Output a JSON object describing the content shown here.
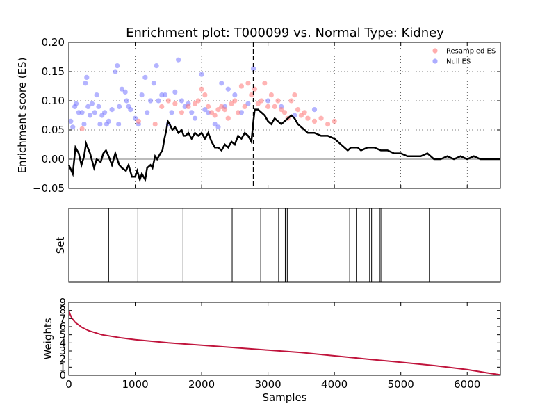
{
  "title": "Enrichment plot: T000099 vs. Normal Type: Kidney",
  "colors": {
    "es_line": "#000000",
    "resampled": "#ff7777",
    "null": "#7777ff",
    "weights": "#c0143c",
    "grid": "#000000"
  },
  "chart_data": [
    {
      "type": "line",
      "name": "enrichment",
      "xlim": [
        0,
        6500
      ],
      "ylim": [
        -0.05,
        0.2
      ],
      "yticks": [
        "−0.05",
        "0.00",
        "0.05",
        "0.10",
        "0.15",
        "0.20"
      ],
      "ytick_values": [
        -0.05,
        0.0,
        0.05,
        0.1,
        0.15,
        0.2
      ],
      "xtick_values": [
        1000,
        2000,
        3000,
        4000,
        5000,
        6000
      ],
      "xlabel": "",
      "ylabel": "Enrichment score (ES)",
      "grid": true,
      "vline_x": 2780,
      "legend_position": "top-right",
      "legend": [
        {
          "label": "Resampled ES",
          "color": "#ff7777"
        },
        {
          "label": "Null ES",
          "color": "#7777ff"
        }
      ],
      "es_curve": [
        [
          0,
          -0.01
        ],
        [
          60,
          -0.025
        ],
        [
          100,
          0.02
        ],
        [
          150,
          0.01
        ],
        [
          190,
          -0.01
        ],
        [
          230,
          0.005
        ],
        [
          260,
          0.027
        ],
        [
          320,
          0.01
        ],
        [
          380,
          -0.015
        ],
        [
          420,
          0.0
        ],
        [
          480,
          -0.005
        ],
        [
          520,
          0.01
        ],
        [
          560,
          0.015
        ],
        [
          600,
          0.005
        ],
        [
          650,
          -0.01
        ],
        [
          700,
          0.01
        ],
        [
          760,
          -0.01
        ],
        [
          800,
          -0.015
        ],
        [
          860,
          -0.02
        ],
        [
          900,
          -0.01
        ],
        [
          950,
          -0.03
        ],
        [
          1000,
          -0.03
        ],
        [
          1030,
          -0.02
        ],
        [
          1070,
          -0.035
        ],
        [
          1100,
          -0.025
        ],
        [
          1150,
          -0.035
        ],
        [
          1180,
          -0.015
        ],
        [
          1230,
          -0.01
        ],
        [
          1260,
          -0.015
        ],
        [
          1300,
          0.005
        ],
        [
          1330,
          0.0
        ],
        [
          1380,
          0.01
        ],
        [
          1410,
          0.015
        ],
        [
          1440,
          0.035
        ],
        [
          1470,
          0.05
        ],
        [
          1490,
          0.065
        ],
        [
          1520,
          0.06
        ],
        [
          1560,
          0.05
        ],
        [
          1600,
          0.055
        ],
        [
          1650,
          0.045
        ],
        [
          1700,
          0.05
        ],
        [
          1730,
          0.04
        ],
        [
          1760,
          0.04
        ],
        [
          1800,
          0.045
        ],
        [
          1850,
          0.035
        ],
        [
          1900,
          0.045
        ],
        [
          1950,
          0.04
        ],
        [
          2000,
          0.045
        ],
        [
          2050,
          0.035
        ],
        [
          2100,
          0.045
        ],
        [
          2150,
          0.03
        ],
        [
          2200,
          0.02
        ],
        [
          2250,
          0.02
        ],
        [
          2300,
          0.015
        ],
        [
          2350,
          0.025
        ],
        [
          2400,
          0.02
        ],
        [
          2450,
          0.03
        ],
        [
          2500,
          0.025
        ],
        [
          2550,
          0.04
        ],
        [
          2600,
          0.035
        ],
        [
          2650,
          0.045
        ],
        [
          2700,
          0.04
        ],
        [
          2750,
          0.03
        ],
        [
          2780,
          0.065
        ],
        [
          2800,
          0.085
        ],
        [
          2850,
          0.085
        ],
        [
          2900,
          0.08
        ],
        [
          2950,
          0.075
        ],
        [
          3000,
          0.065
        ],
        [
          3050,
          0.06
        ],
        [
          3100,
          0.07
        ],
        [
          3150,
          0.065
        ],
        [
          3200,
          0.06
        ],
        [
          3250,
          0.065
        ],
        [
          3300,
          0.07
        ],
        [
          3350,
          0.075
        ],
        [
          3400,
          0.07
        ],
        [
          3450,
          0.06
        ],
        [
          3500,
          0.055
        ],
        [
          3550,
          0.05
        ],
        [
          3600,
          0.045
        ],
        [
          3700,
          0.045
        ],
        [
          3800,
          0.04
        ],
        [
          3900,
          0.04
        ],
        [
          4000,
          0.035
        ],
        [
          4100,
          0.025
        ],
        [
          4200,
          0.015
        ],
        [
          4250,
          0.02
        ],
        [
          4350,
          0.02
        ],
        [
          4400,
          0.015
        ],
        [
          4500,
          0.02
        ],
        [
          4600,
          0.02
        ],
        [
          4700,
          0.015
        ],
        [
          4800,
          0.015
        ],
        [
          4900,
          0.01
        ],
        [
          5000,
          0.01
        ],
        [
          5100,
          0.005
        ],
        [
          5200,
          0.005
        ],
        [
          5300,
          0.005
        ],
        [
          5400,
          0.01
        ],
        [
          5500,
          0.0
        ],
        [
          5600,
          0.0
        ],
        [
          5700,
          0.005
        ],
        [
          5800,
          0.0
        ],
        [
          5900,
          0.005
        ],
        [
          6000,
          0.0
        ],
        [
          6100,
          0.005
        ],
        [
          6200,
          0.0
        ],
        [
          6300,
          0.0
        ],
        [
          6400,
          0.0
        ],
        [
          6500,
          0.0
        ]
      ],
      "null_points": [
        [
          30,
          0.065
        ],
        [
          60,
          0.055
        ],
        [
          90,
          0.09
        ],
        [
          110,
          0.095
        ],
        [
          150,
          0.08
        ],
        [
          200,
          0.08
        ],
        [
          230,
          0.06
        ],
        [
          250,
          0.13
        ],
        [
          270,
          0.14
        ],
        [
          290,
          0.09
        ],
        [
          320,
          0.075
        ],
        [
          350,
          0.095
        ],
        [
          390,
          0.08
        ],
        [
          420,
          0.11
        ],
        [
          450,
          0.09
        ],
        [
          470,
          0.06
        ],
        [
          500,
          0.075
        ],
        [
          540,
          0.08
        ],
        [
          570,
          0.06
        ],
        [
          600,
          0.065
        ],
        [
          650,
          0.085
        ],
        [
          700,
          0.15
        ],
        [
          730,
          0.16
        ],
        [
          750,
          0.06
        ],
        [
          760,
          0.09
        ],
        [
          800,
          0.12
        ],
        [
          850,
          0.115
        ],
        [
          870,
          0.1
        ],
        [
          900,
          0.09
        ],
        [
          930,
          0.085
        ],
        [
          1000,
          0.07
        ],
        [
          1050,
          0.06
        ],
        [
          1100,
          0.11
        ],
        [
          1150,
          0.14
        ],
        [
          1180,
          0.08
        ],
        [
          1230,
          0.1
        ],
        [
          1280,
          0.13
        ],
        [
          1320,
          0.16
        ],
        [
          1350,
          0.1
        ],
        [
          1400,
          0.11
        ],
        [
          1450,
          0.11
        ],
        [
          1500,
          0.06
        ],
        [
          1550,
          0.08
        ],
        [
          1600,
          0.115
        ],
        [
          1650,
          0.17
        ],
        [
          1700,
          0.1
        ],
        [
          1750,
          0.09
        ],
        [
          1800,
          0.095
        ],
        [
          1850,
          0.08
        ],
        [
          1900,
          0.07
        ],
        [
          2000,
          0.145
        ],
        [
          2050,
          0.085
        ],
        [
          2100,
          0.08
        ],
        [
          2200,
          0.06
        ],
        [
          2250,
          0.055
        ],
        [
          2300,
          0.13
        ],
        [
          2350,
          0.09
        ],
        [
          2400,
          0.12
        ],
        [
          2500,
          0.11
        ],
        [
          2600,
          0.08
        ],
        [
          2700,
          0.095
        ],
        [
          2780,
          0.155
        ],
        [
          3000,
          0.1
        ],
        [
          3200,
          0.09
        ],
        [
          3400,
          0.075
        ],
        [
          3700,
          0.085
        ]
      ],
      "resampled_points": [
        [
          200,
          0.052
        ],
        [
          1050,
          0.065
        ],
        [
          1300,
          0.06
        ],
        [
          1400,
          0.09
        ],
        [
          1500,
          0.1
        ],
        [
          1600,
          0.095
        ],
        [
          1700,
          0.08
        ],
        [
          1800,
          0.09
        ],
        [
          1900,
          0.095
        ],
        [
          1950,
          0.1
        ],
        [
          2000,
          0.12
        ],
        [
          2050,
          0.11
        ],
        [
          2100,
          0.09
        ],
        [
          2150,
          0.08
        ],
        [
          2200,
          0.075
        ],
        [
          2250,
          0.085
        ],
        [
          2300,
          0.09
        ],
        [
          2350,
          0.085
        ],
        [
          2400,
          0.07
        ],
        [
          2450,
          0.095
        ],
        [
          2500,
          0.1
        ],
        [
          2550,
          0.08
        ],
        [
          2600,
          0.125
        ],
        [
          2650,
          0.09
        ],
        [
          2700,
          0.13
        ],
        [
          2750,
          0.11
        ],
        [
          2800,
          0.12
        ],
        [
          2850,
          0.095
        ],
        [
          2900,
          0.1
        ],
        [
          2950,
          0.13
        ],
        [
          3000,
          0.09
        ],
        [
          3050,
          0.11
        ],
        [
          3100,
          0.09
        ],
        [
          3150,
          0.1
        ],
        [
          3200,
          0.085
        ],
        [
          3250,
          0.08
        ],
        [
          3300,
          0.07
        ],
        [
          3350,
          0.1
        ],
        [
          3400,
          0.11
        ],
        [
          3450,
          0.085
        ],
        [
          3500,
          0.075
        ],
        [
          3550,
          0.08
        ],
        [
          3600,
          0.07
        ],
        [
          3700,
          0.065
        ],
        [
          3800,
          0.07
        ],
        [
          3900,
          0.06
        ],
        [
          4000,
          0.065
        ]
      ]
    },
    {
      "type": "barcode",
      "name": "set",
      "xlim": [
        0,
        6500
      ],
      "ylabel": "Set",
      "positions": [
        600,
        1040,
        1720,
        2460,
        2890,
        3160,
        3260,
        3290,
        4230,
        4330,
        4530,
        4560,
        4680,
        4700,
        5430
      ]
    },
    {
      "type": "line",
      "name": "weights",
      "xlim": [
        0,
        6500
      ],
      "ylim": [
        0,
        9
      ],
      "xticks": [
        "0",
        "1000",
        "2000",
        "3000",
        "4000",
        "5000",
        "6000"
      ],
      "xtick_values": [
        0,
        1000,
        2000,
        3000,
        4000,
        5000,
        6000
      ],
      "yticks": [
        "0",
        "1",
        "2",
        "3",
        "4",
        "5",
        "6",
        "7",
        "8",
        "9"
      ],
      "ytick_values": [
        0,
        1,
        2,
        3,
        4,
        5,
        6,
        7,
        8,
        9
      ],
      "xlabel": "Samples",
      "ylabel": "Weights",
      "points": [
        [
          0,
          8.0
        ],
        [
          20,
          7.5
        ],
        [
          50,
          7.0
        ],
        [
          100,
          6.5
        ],
        [
          200,
          5.9
        ],
        [
          300,
          5.5
        ],
        [
          500,
          5.0
        ],
        [
          800,
          4.6
        ],
        [
          1000,
          4.4
        ],
        [
          1500,
          4.0
        ],
        [
          2000,
          3.7
        ],
        [
          2500,
          3.4
        ],
        [
          3000,
          3.1
        ],
        [
          3500,
          2.8
        ],
        [
          4000,
          2.4
        ],
        [
          4500,
          2.0
        ],
        [
          5000,
          1.6
        ],
        [
          5500,
          1.2
        ],
        [
          6000,
          0.7
        ],
        [
          6300,
          0.3
        ],
        [
          6500,
          0.05
        ]
      ]
    }
  ]
}
